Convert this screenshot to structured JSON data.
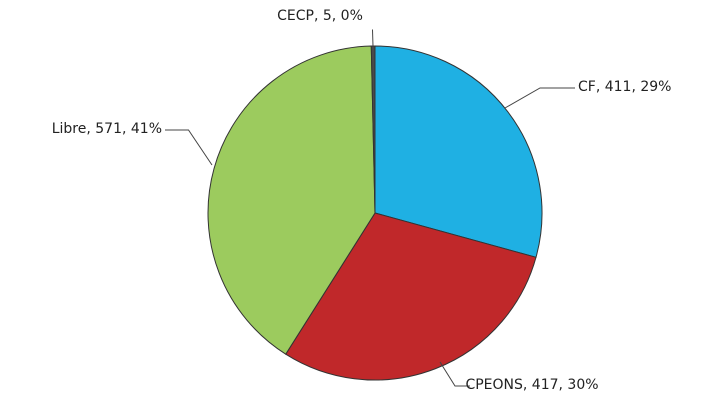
{
  "chart_data": {
    "type": "pie",
    "categories": [
      "CF",
      "CPEONS",
      "Libre",
      "CECP"
    ],
    "values": [
      411,
      417,
      571,
      5
    ],
    "value_labels": [
      "CF, 411, 29%",
      "CPEONS, 417, 30%",
      "Libre, 571, 41%",
      "CECP, 5, 0%"
    ],
    "colors": [
      "#1fb0e3",
      "#c0282a",
      "#9ccb5e",
      "#4a4a4a"
    ]
  }
}
